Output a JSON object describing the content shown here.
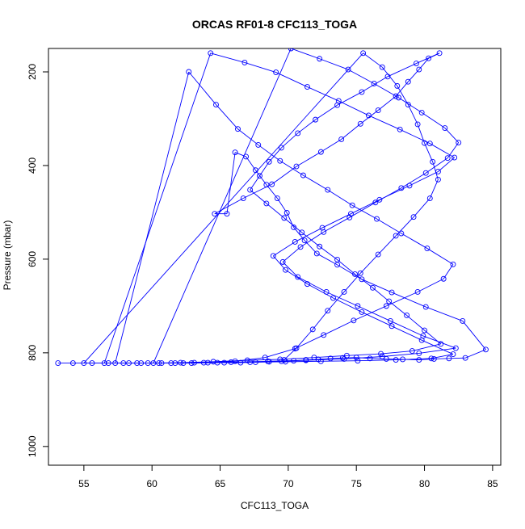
{
  "chart_data": {
    "type": "line",
    "title": "ORCAS RF01-8 CFC113_TOGA",
    "xlabel": "CFC113_TOGA",
    "ylabel": "Pressure (mbar)",
    "xlim": [
      52.4,
      85.6
    ],
    "ylim": [
      1040,
      150
    ],
    "y_inverted": true,
    "x_ticks": [
      55,
      60,
      65,
      70,
      75,
      80,
      85
    ],
    "y_ticks": [
      200,
      400,
      600,
      800,
      1000
    ],
    "grid": false,
    "legend": "none",
    "series": [
      {
        "marker": "open-circle",
        "line": true,
        "color": "#0000ff",
        "points": [
          [
            53.1,
            822
          ],
          [
            54.2,
            822
          ],
          [
            55.6,
            822
          ],
          [
            56.8,
            822
          ],
          [
            57.9,
            822
          ],
          [
            59.2,
            822
          ],
          [
            60.5,
            822
          ],
          [
            61.7,
            822
          ],
          [
            62.9,
            822
          ],
          [
            64.1,
            821
          ],
          [
            65.3,
            821
          ],
          [
            66.5,
            821
          ],
          [
            67.6,
            820
          ],
          [
            68.6,
            819
          ],
          [
            69.5,
            818
          ],
          [
            70.4,
            817
          ],
          [
            71.3,
            815
          ],
          [
            72.2,
            814
          ],
          [
            73.1,
            812
          ],
          [
            74.0,
            811
          ],
          [
            75.0,
            810
          ],
          [
            76.0,
            812
          ],
          [
            77.2,
            813
          ],
          [
            78.4,
            814
          ],
          [
            79.6,
            815
          ],
          [
            80.7,
            813
          ],
          [
            81.8,
            812
          ],
          [
            83.0,
            811
          ],
          [
            84.5,
            793
          ],
          [
            82.8,
            732
          ],
          [
            80.1,
            702
          ],
          [
            77.6,
            671
          ],
          [
            75.4,
            643
          ],
          [
            73.6,
            612
          ],
          [
            72.1,
            588
          ],
          [
            71.2,
            560
          ],
          [
            70.4,
            532
          ],
          [
            69.9,
            501
          ],
          [
            69.2,
            470
          ],
          [
            68.4,
            441
          ],
          [
            67.6,
            410
          ],
          [
            66.9,
            381
          ],
          [
            66.1,
            372
          ],
          [
            65.5,
            503
          ],
          [
            64.6,
            503
          ],
          [
            66.7,
            470
          ],
          [
            68.8,
            440
          ],
          [
            70.6,
            402
          ],
          [
            72.4,
            371
          ],
          [
            73.9,
            344
          ],
          [
            75.3,
            311
          ],
          [
            76.6,
            282
          ],
          [
            77.9,
            252
          ],
          [
            78.8,
            221
          ],
          [
            79.6,
            195
          ],
          [
            80.3,
            171
          ],
          [
            81.1,
            160
          ],
          [
            79.4,
            182
          ],
          [
            77.3,
            210
          ],
          [
            75.4,
            243
          ],
          [
            73.6,
            271
          ],
          [
            72.0,
            302
          ],
          [
            70.7,
            331
          ],
          [
            69.5,
            362
          ],
          [
            68.6,
            392
          ],
          [
            67.9,
            422
          ],
          [
            67.2,
            452
          ],
          [
            68.4,
            481
          ],
          [
            69.7,
            512
          ],
          [
            71.0,
            543
          ],
          [
            72.3,
            573
          ],
          [
            73.6,
            601
          ],
          [
            74.9,
            632
          ],
          [
            76.2,
            661
          ],
          [
            77.4,
            690
          ],
          [
            78.7,
            720
          ],
          [
            80.0,
            752
          ],
          [
            81.2,
            781
          ],
          [
            79.1,
            796
          ],
          [
            76.8,
            802
          ],
          [
            74.3,
            806
          ],
          [
            71.9,
            810
          ],
          [
            69.4,
            814
          ],
          [
            67.0,
            816
          ],
          [
            64.5,
            819
          ],
          [
            62.1,
            821
          ],
          [
            59.7,
            822
          ],
          [
            57.3,
            822
          ],
          [
            62.7,
            200
          ],
          [
            64.7,
            270
          ],
          [
            66.3,
            322
          ],
          [
            67.8,
            356
          ],
          [
            69.4,
            390
          ],
          [
            71.1,
            421
          ],
          [
            72.9,
            452
          ],
          [
            74.7,
            485
          ],
          [
            76.5,
            514
          ],
          [
            78.3,
            545
          ],
          [
            80.2,
            577
          ],
          [
            82.1,
            611
          ],
          [
            81.4,
            642
          ],
          [
            79.5,
            670
          ],
          [
            77.2,
            700
          ],
          [
            74.8,
            731
          ],
          [
            72.6,
            762
          ],
          [
            70.5,
            791
          ],
          [
            68.3,
            810
          ],
          [
            66.1,
            818
          ],
          [
            63.8,
            821
          ],
          [
            61.4,
            822
          ],
          [
            58.9,
            822
          ],
          [
            56.5,
            822
          ],
          [
            64.3,
            160
          ],
          [
            66.8,
            180
          ],
          [
            69.1,
            201
          ],
          [
            71.4,
            232
          ],
          [
            73.7,
            262
          ],
          [
            75.9,
            293
          ],
          [
            78.2,
            323
          ],
          [
            80.4,
            353
          ],
          [
            82.2,
            383
          ],
          [
            81.0,
            413
          ],
          [
            78.9,
            443
          ],
          [
            76.7,
            473
          ],
          [
            74.6,
            503
          ],
          [
            72.5,
            533
          ],
          [
            70.5,
            563
          ],
          [
            68.9,
            593
          ],
          [
            69.8,
            623
          ],
          [
            71.4,
            653
          ],
          [
            73.3,
            683
          ],
          [
            75.4,
            713
          ],
          [
            77.6,
            743
          ],
          [
            79.8,
            773
          ],
          [
            82.1,
            803
          ],
          [
            80.5,
            812
          ],
          [
            77.9,
            815
          ],
          [
            75.1,
            817
          ],
          [
            72.4,
            818
          ],
          [
            69.8,
            819
          ],
          [
            67.2,
            820
          ],
          [
            64.8,
            821
          ],
          [
            62.3,
            822
          ],
          [
            60.1,
            822
          ],
          [
            70.2,
            150
          ],
          [
            72.3,
            172
          ],
          [
            74.4,
            195
          ],
          [
            76.3,
            225
          ],
          [
            78.1,
            255
          ],
          [
            79.8,
            287
          ],
          [
            81.5,
            320
          ],
          [
            82.5,
            351
          ],
          [
            81.7,
            384
          ],
          [
            80.1,
            416
          ],
          [
            78.3,
            448
          ],
          [
            76.4,
            479
          ],
          [
            74.5,
            511
          ],
          [
            72.6,
            542
          ],
          [
            70.9,
            574
          ],
          [
            69.6,
            606
          ],
          [
            70.7,
            638
          ],
          [
            72.8,
            670
          ],
          [
            75.1,
            700
          ],
          [
            77.5,
            732
          ],
          [
            79.9,
            764
          ],
          [
            82.3,
            790
          ],
          [
            79.6,
            801
          ],
          [
            76.9,
            808
          ],
          [
            74.1,
            813
          ],
          [
            71.3,
            816
          ],
          [
            68.5,
            818
          ],
          [
            65.8,
            820
          ],
          [
            63.1,
            821
          ],
          [
            60.7,
            822
          ],
          [
            58.3,
            822
          ],
          [
            55.0,
            822
          ],
          [
            75.5,
            160
          ],
          [
            76.9,
            190
          ],
          [
            78.0,
            230
          ],
          [
            78.8,
            270
          ],
          [
            79.5,
            312
          ],
          [
            80.0,
            352
          ],
          [
            80.6,
            392
          ],
          [
            81.0,
            430
          ],
          [
            80.4,
            470
          ],
          [
            79.2,
            510
          ],
          [
            77.9,
            550
          ],
          [
            76.6,
            590
          ],
          [
            75.3,
            630
          ],
          [
            74.1,
            670
          ],
          [
            72.9,
            710
          ],
          [
            71.8,
            750
          ],
          [
            70.6,
            790
          ],
          [
            69.7,
            815
          ]
        ]
      }
    ]
  }
}
